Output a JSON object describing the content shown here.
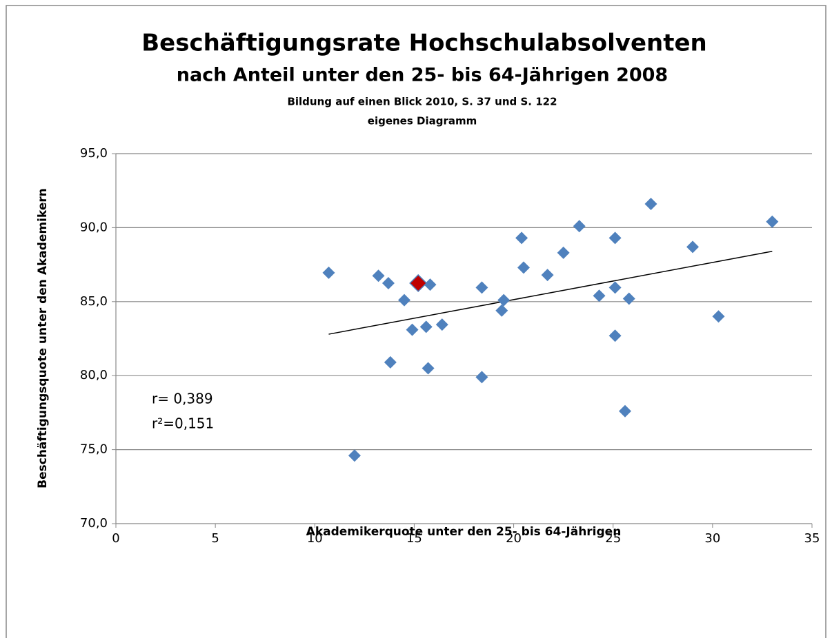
{
  "chart_data": {
    "type": "scatter",
    "title": "Beschäftigungsrate Hochschulabsolventen",
    "subtitle": "nach Anteil unter den 25- bis 64-Jährigen 2008",
    "source": "Bildung auf einen Blick 2010, S. 37 und S. 122",
    "note": "eigenes Diagramm",
    "x_label": "Akademikerquote unter den 25- bis 64-Jährigen",
    "y_label": "Beschäftigungsquote unter den Akademikern",
    "annotations": [
      "r= 0,389",
      "r²=0,151"
    ],
    "series": [
      {
        "color": "#4f81bd",
        "x": [
          10.7,
          13.2,
          13.7,
          14.5,
          15.8,
          14.9,
          15.6,
          16.4,
          13.8,
          15.7,
          12.0,
          18.4,
          18.4,
          19.4,
          19.5,
          20.4,
          20.5,
          21.7,
          22.5,
          23.3,
          24.3,
          25.1,
          25.1,
          25.1,
          25.6,
          25.8,
          26.9,
          29.0,
          30.3,
          33.0
        ],
        "values": [
          86.95,
          86.75,
          86.25,
          85.1,
          86.15,
          83.1,
          83.3,
          83.45,
          80.9,
          80.5,
          74.6,
          85.95,
          79.9,
          84.4,
          85.1,
          89.3,
          87.3,
          86.8,
          88.3,
          90.1,
          85.4,
          89.3,
          85.95,
          82.7,
          77.6,
          85.2,
          91.6,
          88.7,
          84.0,
          90.4
        ]
      },
      {
        "color": "#c00000",
        "x": [
          15.2
        ],
        "values": [
          86.25
        ]
      }
    ],
    "trendline": {
      "color": "#000000",
      "x": [
        10.7,
        33.0
      ],
      "values": [
        82.8,
        88.4
      ]
    },
    "xlim": [
      0,
      35
    ],
    "xticks": [
      0,
      5,
      10,
      15,
      20,
      25,
      30,
      35
    ],
    "ylim": [
      70,
      95
    ],
    "yticks": [
      {
        "value": 70,
        "label": "70,0"
      },
      {
        "value": 75,
        "label": "75,0"
      },
      {
        "value": 80,
        "label": "80,0"
      },
      {
        "value": 85,
        "label": "85,0"
      },
      {
        "value": 90,
        "label": "90,0"
      },
      {
        "value": 95,
        "label": "95,0"
      }
    ],
    "grid": true
  }
}
